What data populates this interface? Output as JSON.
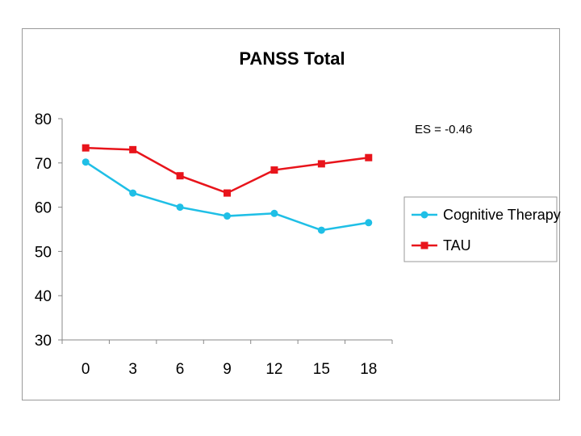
{
  "chart_data": {
    "type": "line",
    "title": "PANSS Total",
    "annotation": "ES = -0.46",
    "x": [
      0,
      3,
      6,
      9,
      12,
      15,
      18
    ],
    "ylim": [
      30,
      80
    ],
    "yticks": [
      30,
      40,
      50,
      60,
      70,
      80
    ],
    "grid": false,
    "legend_position": "right",
    "series": [
      {
        "name": "Cognitive Therapy",
        "color": "#1fbfe6",
        "marker": "circle",
        "values": [
          70.2,
          63.2,
          60.0,
          58.0,
          58.6,
          54.8,
          56.5
        ]
      },
      {
        "name": "TAU",
        "color": "#e8141b",
        "marker": "square",
        "values": [
          73.4,
          73.0,
          67.1,
          63.2,
          68.4,
          69.8,
          71.2
        ]
      }
    ]
  }
}
